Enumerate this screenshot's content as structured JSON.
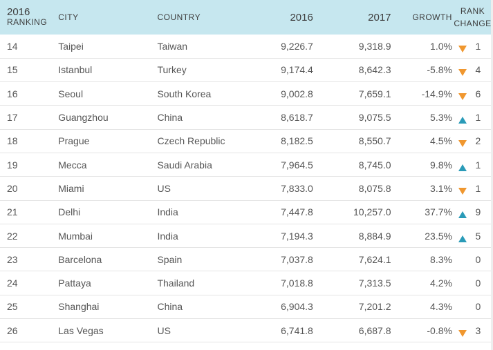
{
  "header": {
    "rank_year": "2016",
    "rank_label": "RANKING",
    "city": "CITY",
    "country": "COUNTRY",
    "v2016": "2016",
    "v2017": "2017",
    "growth": "GROWTH",
    "change_line1": "RANK",
    "change_line2": "CHANGE"
  },
  "colors": {
    "header_bg": "#c6e7ef",
    "down_arrow": "#f0972f",
    "up_arrow": "#2a9bb8"
  },
  "chart_data": {
    "type": "table",
    "columns": [
      "2016 RANKING",
      "CITY",
      "COUNTRY",
      "2016",
      "2017",
      "GROWTH",
      "RANK CHANGE"
    ],
    "rows": [
      {
        "rank": "14",
        "city": "Taipei",
        "country": "Taiwan",
        "v2016": "9,226.7",
        "v2017": "9,318.9",
        "growth": "1.0%",
        "direction": "down",
        "change": "1"
      },
      {
        "rank": "15",
        "city": "Istanbul",
        "country": "Turkey",
        "v2016": "9,174.4",
        "v2017": "8,642.3",
        "growth": "-5.8%",
        "direction": "down",
        "change": "4"
      },
      {
        "rank": "16",
        "city": "Seoul",
        "country": "South Korea",
        "v2016": "9,002.8",
        "v2017": "7,659.1",
        "growth": "-14.9%",
        "direction": "down",
        "change": "6"
      },
      {
        "rank": "17",
        "city": "Guangzhou",
        "country": "China",
        "v2016": "8,618.7",
        "v2017": "9,075.5",
        "growth": "5.3%",
        "direction": "up",
        "change": "1"
      },
      {
        "rank": "18",
        "city": "Prague",
        "country": "Czech Republic",
        "v2016": "8,182.5",
        "v2017": "8,550.7",
        "growth": "4.5%",
        "direction": "down",
        "change": "2"
      },
      {
        "rank": "19",
        "city": "Mecca",
        "country": "Saudi Arabia",
        "v2016": "7,964.5",
        "v2017": "8,745.0",
        "growth": "9.8%",
        "direction": "up",
        "change": "1"
      },
      {
        "rank": "20",
        "city": "Miami",
        "country": "US",
        "v2016": "7,833.0",
        "v2017": "8,075.8",
        "growth": "3.1%",
        "direction": "down",
        "change": "1"
      },
      {
        "rank": "21",
        "city": "Delhi",
        "country": "India",
        "v2016": "7,447.8",
        "v2017": "10,257.0",
        "growth": "37.7%",
        "direction": "up",
        "change": "9"
      },
      {
        "rank": "22",
        "city": "Mumbai",
        "country": "India",
        "v2016": "7,194.3",
        "v2017": "8,884.9",
        "growth": "23.5%",
        "direction": "up",
        "change": "5"
      },
      {
        "rank": "23",
        "city": "Barcelona",
        "country": "Spain",
        "v2016": "7,037.8",
        "v2017": "7,624.1",
        "growth": "8.3%",
        "direction": "none",
        "change": "0"
      },
      {
        "rank": "24",
        "city": "Pattaya",
        "country": "Thailand",
        "v2016": "7,018.8",
        "v2017": "7,313.5",
        "growth": "4.2%",
        "direction": "none",
        "change": "0"
      },
      {
        "rank": "25",
        "city": "Shanghai",
        "country": "China",
        "v2016": "6,904.3",
        "v2017": "7,201.2",
        "growth": "4.3%",
        "direction": "none",
        "change": "0"
      },
      {
        "rank": "26",
        "city": "Las Vegas",
        "country": "US",
        "v2016": "6,741.8",
        "v2017": "6,687.8",
        "growth": "-0.8%",
        "direction": "down",
        "change": "3"
      }
    ]
  }
}
